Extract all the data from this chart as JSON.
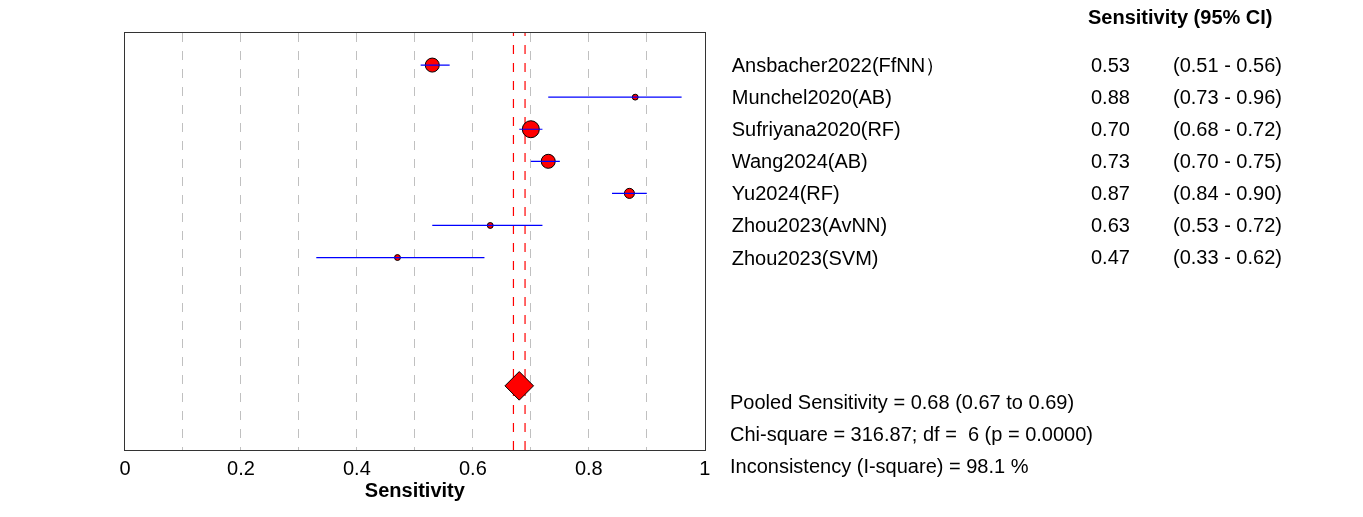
{
  "chart_data": {
    "type": "scatter",
    "xlabel": "Sensitivity",
    "categories": [
      "Ansbacher2022(FfNN）",
      "Munchel2020(AB)",
      "Sufriyana2020(RF)",
      "Wang2024(AB)",
      "Yu2024(RF)",
      "Zhou2023(AvNN)",
      "Zhou2023(SVM)",
      null,
      null,
      null,
      null
    ],
    "series": [
      {
        "color": "#ff0000",
        "marker": "circle",
        "values": [
          0.53,
          0.88,
          0.7,
          0.73,
          0.87,
          0.63,
          0.47,
          null,
          null,
          null,
          null
        ],
        "errors": [
          [
            0.51,
            0.56
          ],
          [
            0.73,
            0.96
          ],
          [
            0.68,
            0.72
          ],
          [
            0.7,
            0.75
          ],
          [
            0.84,
            0.9
          ],
          [
            0.53,
            0.72
          ],
          [
            0.33,
            0.62
          ],
          null,
          null,
          null,
          null
        ],
        "sizes": [
          0.68,
          0.12,
          1,
          0.68,
          0.35,
          0.12,
          0.12,
          null,
          null,
          null,
          null
        ],
        "value_labels": [
          "0.53",
          "0.88",
          "0.70",
          "0.73",
          "0.87",
          "0.63",
          "0.47",
          null,
          null,
          null,
          null
        ]
      },
      {
        "color": "#ff0000",
        "marker": "diamond",
        "values": [
          null,
          null,
          null,
          null,
          null,
          null,
          null,
          null,
          null,
          null,
          0.68
        ]
      }
    ],
    "orientation": "horizontal",
    "xlim": [
      0,
      1
    ],
    "xticks": [
      0,
      {
        "value": 0.1,
        "label": null
      },
      0.2,
      {
        "value": 0.3,
        "label": null
      },
      0.4,
      {
        "value": 0.5,
        "label": null
      },
      0.6,
      {
        "value": 0.7,
        "label": null
      },
      0.8,
      {
        "value": 0.9,
        "label": null
      },
      1
    ],
    "grid": "x",
    "ref_lines": [
      {
        "axis": "x",
        "value": 0.67,
        "color": "#ff0000",
        "line_style": "dashed"
      },
      {
        "axis": "x",
        "value": 0.69,
        "color": "#ff0000",
        "line_style": "dashed"
      }
    ],
    "annotations": [
      "Sensitivity (95% CI)",
      "(0.51 - 0.56)",
      "(0.73 - 0.96)",
      "(0.68 - 0.72)",
      "(0.70 - 0.75)",
      "(0.84 - 0.90)",
      "(0.53 - 0.72)",
      "(0.33 - 0.62)",
      "Pooled Sensitivity = 0.68 (0.67 to 0.69)",
      "Chi-square = 316.87; df =  6 (p = 0.0000)",
      "Inconsistency (I-square) = 98.1 %"
    ]
  }
}
